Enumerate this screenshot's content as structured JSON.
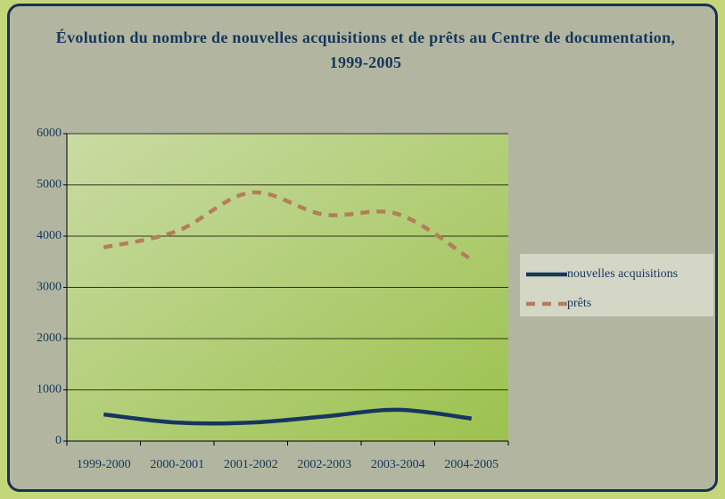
{
  "chart_data": {
    "type": "line",
    "title": "Évolution du nombre de nouvelles acquisitions et de prêts au Centre de documentation, 1999-2005",
    "categories": [
      "1999-2000",
      "2000-2001",
      "2001-2002",
      "2002-2003",
      "2003-2004",
      "2004-2005"
    ],
    "series": [
      {
        "name": "nouvelles acquisitions",
        "color": "#17365d",
        "line_style": "solid",
        "values": [
          520,
          360,
          360,
          480,
          610,
          440
        ]
      },
      {
        "name": "prêts",
        "color": "#b47e5a",
        "line_style": "dashed",
        "values": [
          3780,
          4100,
          4850,
          4420,
          4430,
          3540
        ]
      }
    ],
    "ylim": [
      0,
      6000
    ],
    "yticks": [
      0,
      1000,
      2000,
      3000,
      4000,
      5000,
      6000
    ],
    "grid": true,
    "legend": "right"
  }
}
